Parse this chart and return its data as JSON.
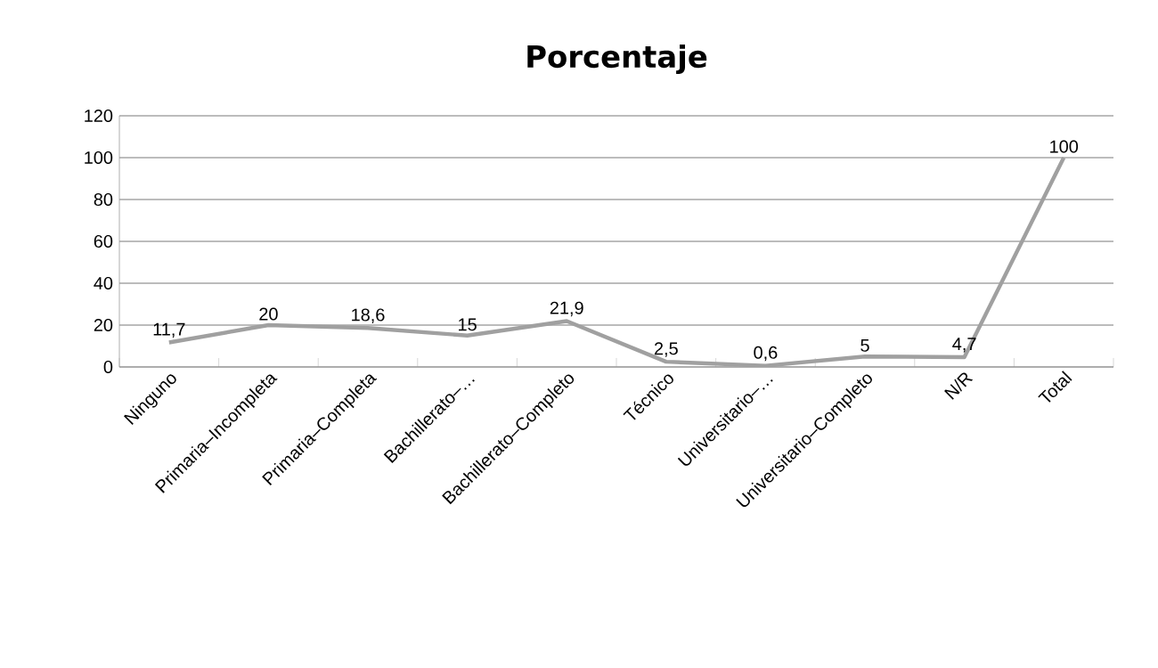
{
  "chart_data": {
    "type": "line",
    "title": "Porcentaje",
    "categories": [
      "Ninguno",
      "Primaria–Incompleta",
      "Primaria–Completa",
      "Bachillerato–…",
      "Bachillerato–Completo",
      "Técnico",
      "Universitario–…",
      "Universitario–Completo",
      "N/R",
      "Total"
    ],
    "values": [
      11.7,
      20,
      18.6,
      15,
      21.9,
      2.5,
      0.6,
      5,
      4.7,
      100
    ],
    "value_labels": [
      "11,7",
      "20",
      "18,6",
      "15",
      "21,9",
      "2,5",
      "0,6",
      "5",
      "4,7",
      "100"
    ],
    "color": "#a0a0a0",
    "marker": "none",
    "line_style": "solid",
    "grid": "y",
    "ylim": [
      0,
      120
    ],
    "yticks": [
      0,
      20,
      40,
      60,
      80,
      100,
      120
    ]
  }
}
